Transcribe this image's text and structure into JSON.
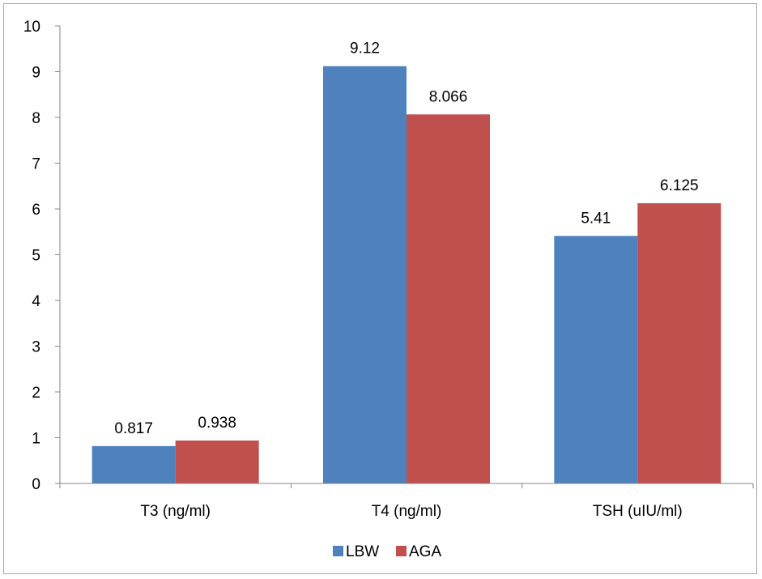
{
  "chart_data": {
    "type": "bar",
    "categories": [
      "T3 (ng/ml)",
      "T4 (ng/ml)",
      "TSH (uIU/ml)"
    ],
    "series": [
      {
        "name": "LBW",
        "values": [
          0.817,
          9.12,
          5.41
        ],
        "labels": [
          "0.817",
          "9.12",
          "5.41"
        ],
        "color": "#4f81bd"
      },
      {
        "name": "AGA",
        "values": [
          0.938,
          8.066,
          6.125
        ],
        "labels": [
          "0.938",
          "8.066",
          "6.125"
        ],
        "color": "#c0504d"
      }
    ],
    "title": "",
    "xlabel": "",
    "ylabel": "",
    "ylim": [
      0,
      10
    ],
    "yticks": [
      0,
      1,
      2,
      3,
      4,
      5,
      6,
      7,
      8,
      9,
      10
    ],
    "grid": false,
    "legend_position": "bottom"
  }
}
